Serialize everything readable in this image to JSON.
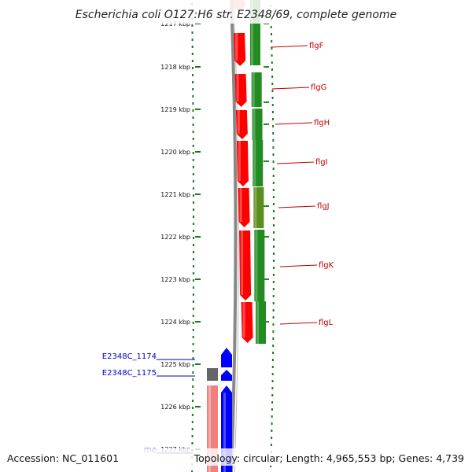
{
  "title": "Escherichia coli O127:H6 str. E2348/69, complete genome",
  "footer": {
    "accession": "Accession: NC_011601",
    "topology": "Topology: circular; Length: 4,965,553 bp; Genes: 4,739"
  },
  "ruler": [
    {
      "label": "1217 kbp"
    },
    {
      "label": "1218 kbp"
    },
    {
      "label": "1219 kbp"
    },
    {
      "label": "1220 kbp"
    },
    {
      "label": "1221 kbp"
    },
    {
      "label": "1222 kbp"
    },
    {
      "label": "1223 kbp"
    },
    {
      "label": "1224 kbp"
    },
    {
      "label": "1225 kbp"
    },
    {
      "label": "1226 kbp"
    },
    {
      "label": "1227 kbp"
    }
  ],
  "genes_right": [
    {
      "name": "flgF"
    },
    {
      "name": "flgG"
    },
    {
      "name": "flgH"
    },
    {
      "name": "flgI"
    },
    {
      "name": "flgJ"
    },
    {
      "name": "flgK"
    },
    {
      "name": "flgL"
    }
  ],
  "genes_left": [
    {
      "name": "E2348C_1174"
    },
    {
      "name": "E2348C_1175"
    },
    {
      "name": "rne"
    }
  ],
  "colors": {
    "red": "#ff0000",
    "green": "#228b22",
    "blue": "#0000ff",
    "grey": "#666666",
    "pink": "#f08080",
    "tick": "#1a7a1a"
  }
}
